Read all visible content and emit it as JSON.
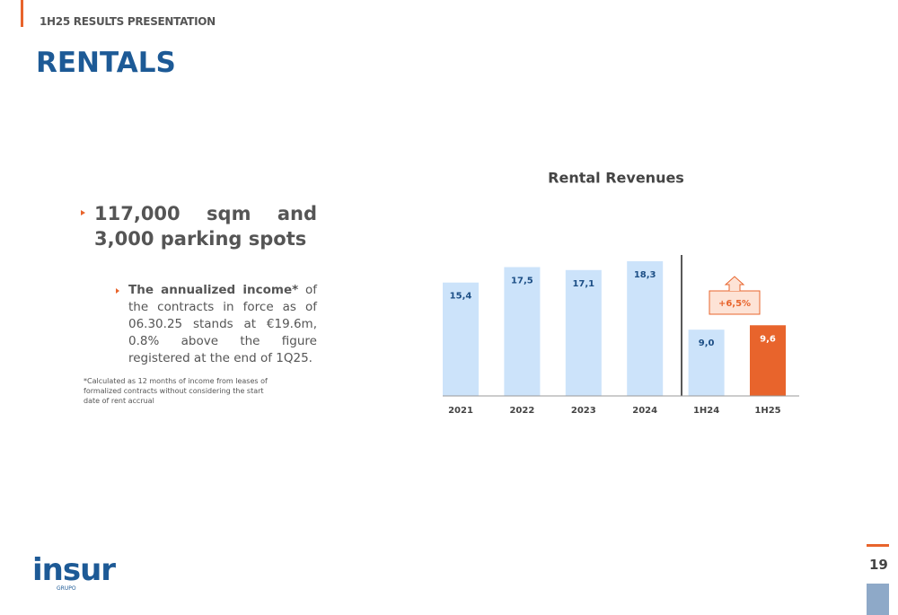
{
  "header": {
    "kicker": "1H25 RESULTS PRESENTATION",
    "title": "RENTALS"
  },
  "bullets": [
    {
      "text": "117,000 sqm and 3,000 parking spots"
    },
    {
      "bold": "The annualized income*",
      "text": " of the contracts in force as of 06.30.25 stands at €19.6m, 0.8% above the figure registered at the end of 1Q25."
    }
  ],
  "footnote": "*Calculated as 12 months of income from leases of formalized contracts without considering the start date of rent accrual",
  "logo": {
    "name": "insur",
    "sub": "GRUPO"
  },
  "page_number": "19",
  "chart_data": {
    "type": "bar",
    "title": "Rental Revenues",
    "categories": [
      "2021",
      "2022",
      "2023",
      "2024",
      "1H24",
      "1H25"
    ],
    "values": [
      15.4,
      17.5,
      17.1,
      18.3,
      9.0,
      9.6
    ],
    "value_labels": [
      "15,4",
      "17,5",
      "17,1",
      "18,3",
      "9,0",
      "9,6"
    ],
    "colors": [
      "#cce3fa",
      "#cce3fa",
      "#cce3fa",
      "#cce3fa",
      "#cce3fa",
      "#e8642c"
    ],
    "ylim": [
      0,
      20
    ],
    "annotation": "+6,5%"
  }
}
